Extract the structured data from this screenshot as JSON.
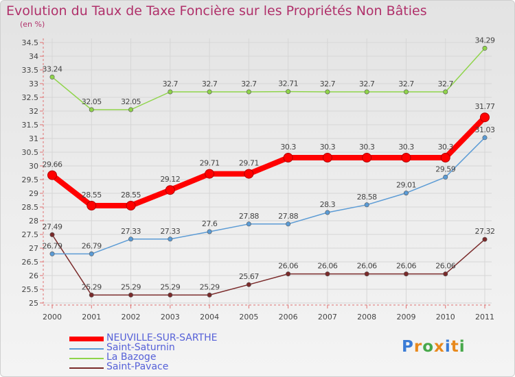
{
  "title": "Evolution du Taux de Taxe Foncière sur les Propriétés Non Bâties",
  "unit_label": "(en %)",
  "logo": {
    "text": "Proxiti",
    "colors": [
      "#3a7bd5",
      "#e8891c",
      "#47a84a",
      "#e8891c",
      "#3a7bd5",
      "#e8891c",
      "#47a84a"
    ]
  },
  "chart_data": {
    "type": "line",
    "title": "Evolution du Taux de Taxe Foncière sur les Propriétés Non Bâties",
    "xlabel": "",
    "ylabel": "(en %)",
    "x": [
      "2000",
      "2001",
      "2002",
      "2003",
      "2004",
      "2005",
      "2006",
      "2007",
      "2008",
      "2009",
      "2010",
      "2011"
    ],
    "ylim": [
      25,
      34.5
    ],
    "y_ticks": [
      "25",
      "25.5",
      "26",
      "26.5",
      "27",
      "27.5",
      "28",
      "28.5",
      "29",
      "29.5",
      "30",
      "30.5",
      "31",
      "31.5",
      "32",
      "32.5",
      "33",
      "33.5",
      "34",
      "34.5"
    ],
    "grid": true,
    "legend_position": "bottom-left",
    "series": [
      {
        "name": "NEUVILLE-SUR-SARTHE",
        "color": "#ff0000",
        "values": [
          29.66,
          28.55,
          28.55,
          29.12,
          29.71,
          29.71,
          30.3,
          30.3,
          30.3,
          30.3,
          30.3,
          31.77
        ],
        "labels": [
          "29.66",
          "28.55",
          "28.55",
          "29.12",
          "29.71",
          "29.71",
          "30.3",
          "30.3",
          "30.3",
          "30.3",
          "30.3",
          "31.77"
        ]
      },
      {
        "name": "Saint-Saturnin",
        "color": "#5b9bd5",
        "values": [
          26.79,
          26.79,
          27.33,
          27.33,
          27.6,
          27.88,
          27.88,
          28.3,
          28.58,
          29.01,
          29.59,
          31.03
        ],
        "labels": [
          "26.79",
          "26.79",
          "27.33",
          "27.33",
          "27.6",
          "27.88",
          "27.88",
          "28.3",
          "28.58",
          "29.01",
          "29.59",
          "31.03"
        ]
      },
      {
        "name": "La Bazoge",
        "color": "#8fd44a",
        "values": [
          33.24,
          32.05,
          32.05,
          32.7,
          32.7,
          32.7,
          32.71,
          32.7,
          32.7,
          32.7,
          32.7,
          34.29
        ],
        "labels": [
          "33.24",
          "32.05",
          "32.05",
          "32.7",
          "32.7",
          "32.7",
          "32.71",
          "32.7",
          "32.7",
          "32.7",
          "32.7",
          "34.29"
        ]
      },
      {
        "name": "Saint-Pavace",
        "color": "#7a2a2a",
        "values": [
          27.49,
          25.29,
          25.29,
          25.29,
          25.29,
          25.67,
          26.06,
          26.06,
          26.06,
          26.06,
          26.06,
          27.32
        ],
        "labels": [
          "27.49",
          "25.29",
          "25.29",
          "25.29",
          "25.29",
          "25.67",
          "26.06",
          "26.06",
          "26.06",
          "26.06",
          "26.06",
          "27.32"
        ]
      }
    ]
  }
}
